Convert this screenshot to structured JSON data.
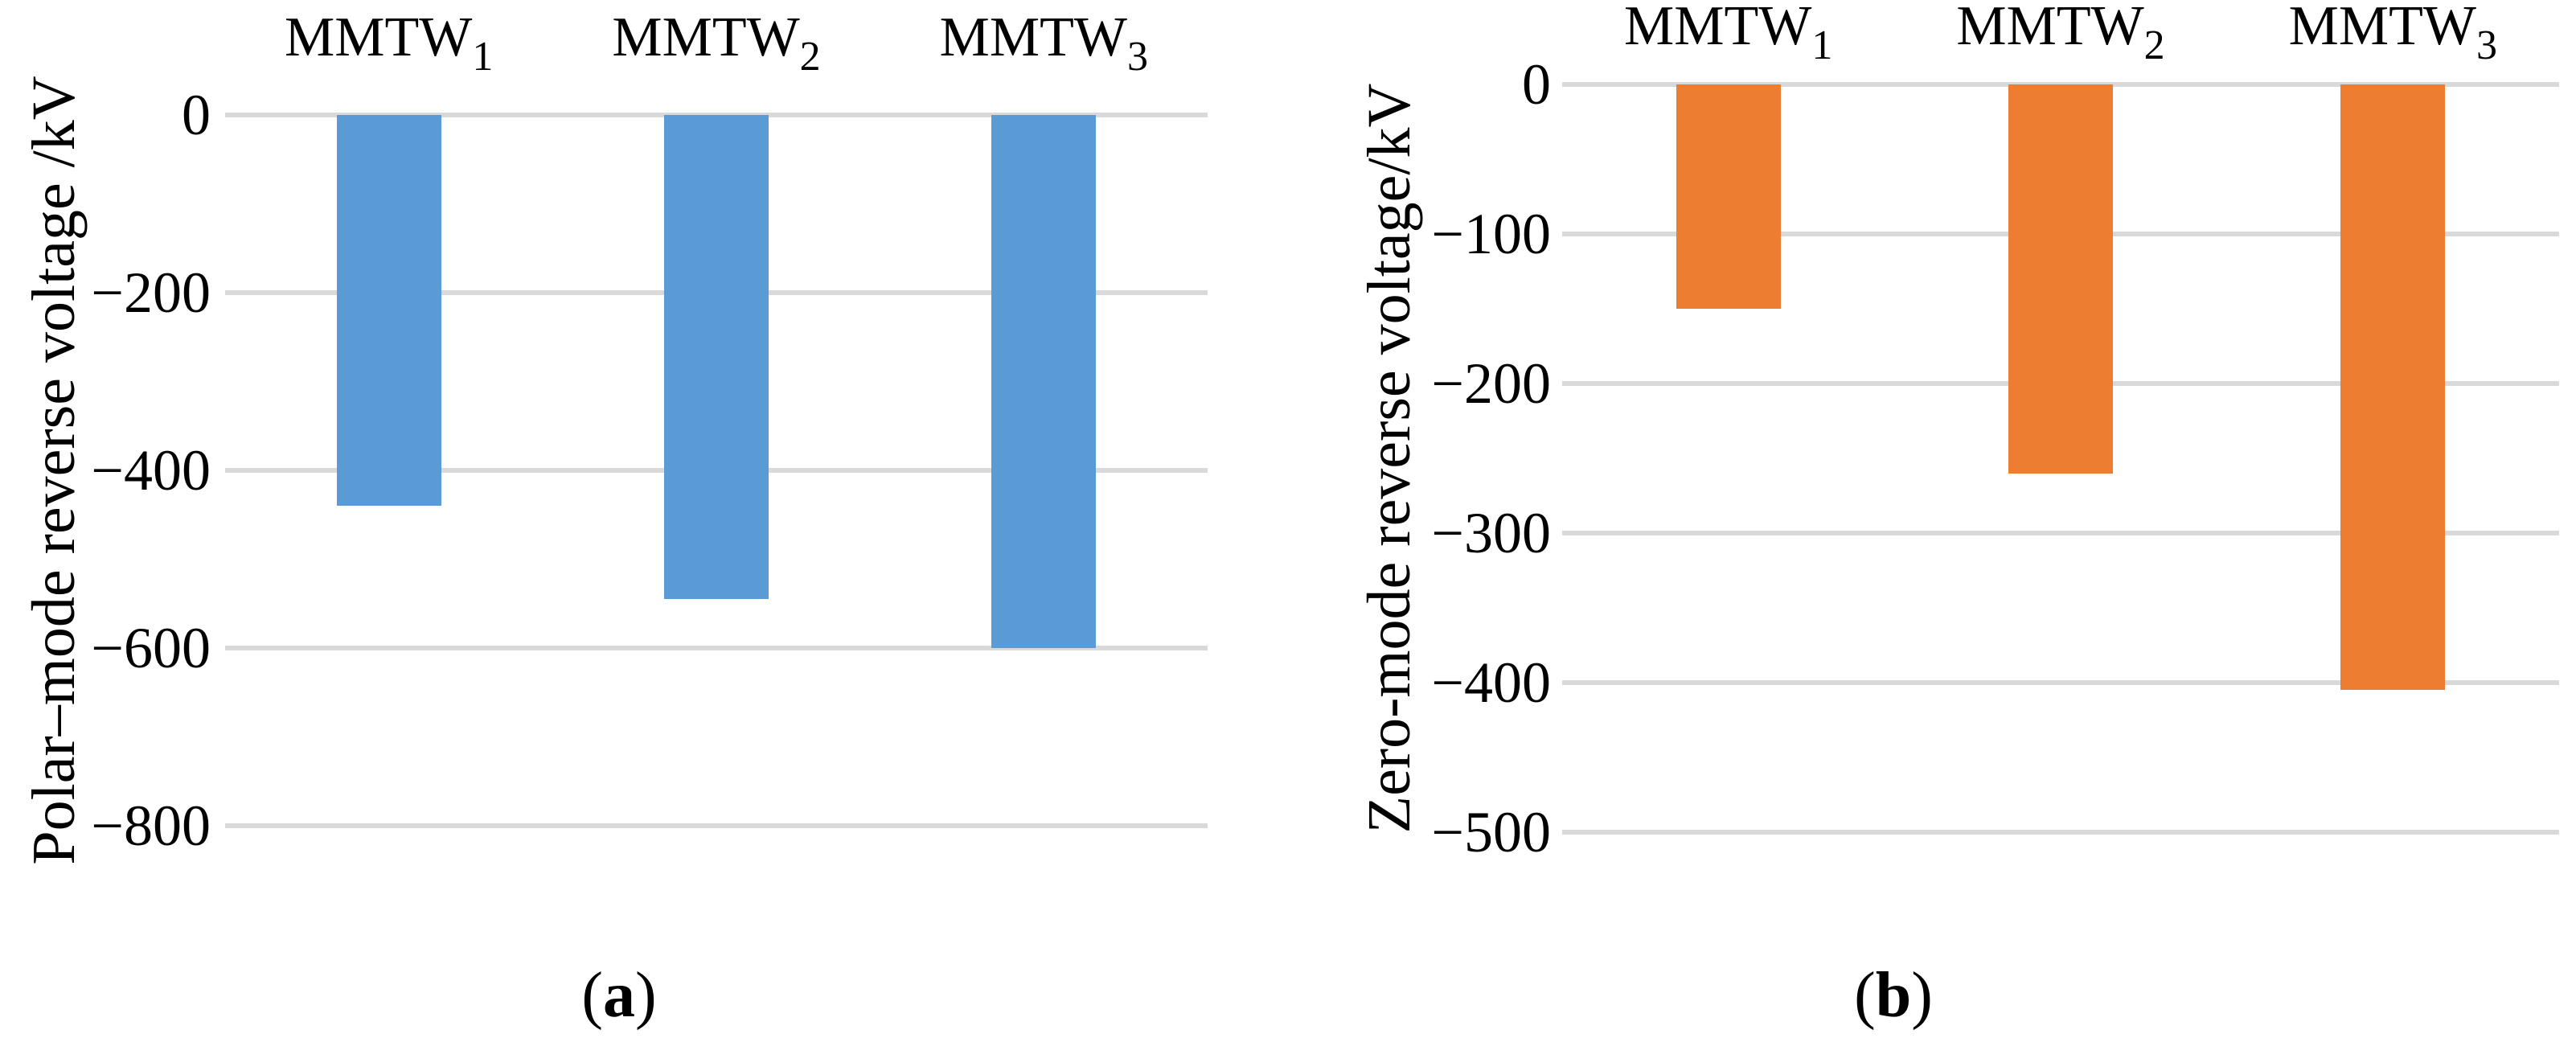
{
  "figure": {
    "background": "#ffffff",
    "gridline_color": "#d9d9d9",
    "text_color": "#000000"
  },
  "chart_data": [
    {
      "type": "bar",
      "panel": "a",
      "caption": "a",
      "categories": [
        {
          "base": "MMTW",
          "sub": "1"
        },
        {
          "base": "MMTW",
          "sub": "2"
        },
        {
          "base": "MMTW",
          "sub": "3"
        }
      ],
      "values": [
        -440,
        -545,
        -600
      ],
      "bar_color": "#5b9bd5",
      "title": "",
      "xlabel": "",
      "ylabel": "Polar–mode reverse voltage /kV",
      "ylim": [
        -800,
        0
      ],
      "yticks": [
        0,
        -200,
        -400,
        -600,
        -800
      ],
      "grid": true,
      "legend": "none"
    },
    {
      "type": "bar",
      "panel": "b",
      "caption": "b",
      "categories": [
        {
          "base": "MMTW",
          "sub": "1"
        },
        {
          "base": "MMTW",
          "sub": "2"
        },
        {
          "base": "MMTW",
          "sub": "3"
        }
      ],
      "values": [
        -150,
        -260,
        -405
      ],
      "bar_color": "#ed7d31",
      "title": "",
      "xlabel": "",
      "ylabel": "Zero-mode reverse voltage/kV",
      "ylim": [
        -500,
        0
      ],
      "yticks": [
        0,
        -100,
        -200,
        -300,
        -400,
        -500
      ],
      "grid": true,
      "legend": "none"
    }
  ]
}
